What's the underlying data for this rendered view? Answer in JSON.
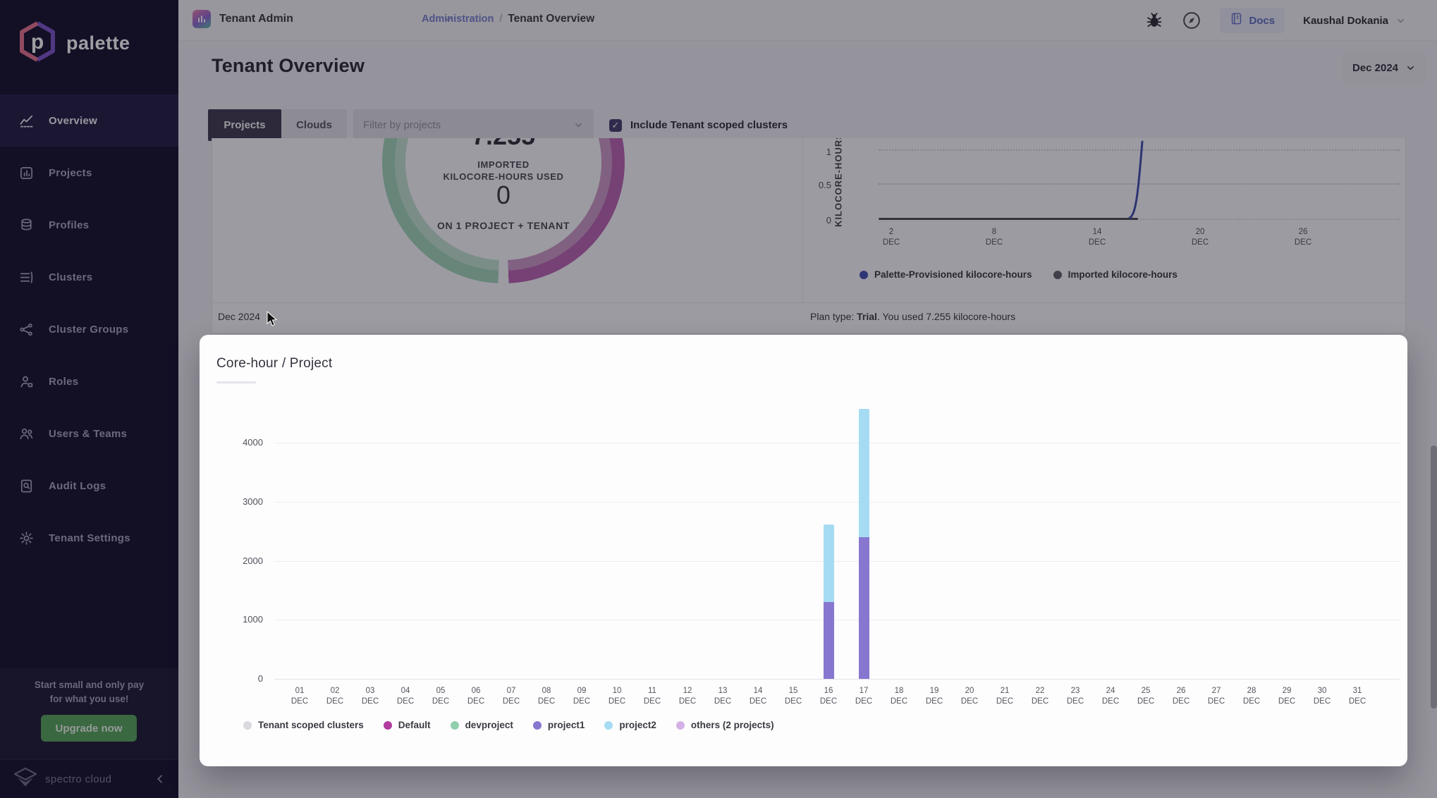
{
  "sidebar": {
    "brand": "palette",
    "items": [
      {
        "label": "Overview",
        "icon": "overview-icon",
        "active": true
      },
      {
        "label": "Projects",
        "icon": "projects-icon",
        "active": false
      },
      {
        "label": "Profiles",
        "icon": "profiles-icon",
        "active": false
      },
      {
        "label": "Clusters",
        "icon": "clusters-icon",
        "active": false
      },
      {
        "label": "Cluster Groups",
        "icon": "cluster-groups-icon",
        "active": false
      },
      {
        "label": "Roles",
        "icon": "roles-icon",
        "active": false
      },
      {
        "label": "Users & Teams",
        "icon": "users-teams-icon",
        "active": false
      },
      {
        "label": "Audit Logs",
        "icon": "audit-logs-icon",
        "active": false
      },
      {
        "label": "Tenant Settings",
        "icon": "tenant-settings-icon",
        "active": false
      }
    ],
    "upsell_line1": "Start small and only pay",
    "upsell_line2": "for what you use!",
    "upgrade_label": "Upgrade now",
    "footer_brand": "spectro cloud"
  },
  "topbar": {
    "project_selector": "Tenant Admin",
    "breadcrumb_section": "Administration",
    "breadcrumb_sep": "/",
    "breadcrumb_page": "Tenant Overview",
    "docs_label": "Docs",
    "user_name": "Kaushal Dokania"
  },
  "header": {
    "title": "Tenant Overview",
    "date_filter": "Dec 2024"
  },
  "filters": {
    "tab_projects": "Projects",
    "tab_clouds": "Clouds",
    "filter_placeholder": "Filter by projects",
    "checkbox_label": "Include Tenant scoped clusters",
    "checkbox_checked": "✓"
  },
  "usage_card": {
    "footer_month": "Dec 2024",
    "plan_prefix": "Plan type: ",
    "plan_type": "Trial",
    "plan_suffix": ". You used 7.255 kilocore-hours"
  },
  "chart_data": [
    {
      "id": "usage_donut",
      "type": "pie",
      "clipped_value": "7.255",
      "center_label_line1": "IMPORTED",
      "center_label_line2": "KILOCORE-HOURS USED",
      "center_value": "0",
      "center_sub": "ON 1 PROJECT + TENANT",
      "segments": [
        {
          "label": "Default",
          "share": 50,
          "color": "#bb64b3",
          "inner_color": "#cd9ac7"
        },
        {
          "label": "devproject",
          "share": 50,
          "color": "#a3d5ba",
          "inner_color": "#c4e3d1"
        }
      ],
      "gap_color": "#fbfbfd"
    },
    {
      "id": "kilocore_line",
      "type": "line",
      "ylabel": "KILOCORE-HOURS",
      "yticks": [
        "1",
        "0.5",
        "0"
      ],
      "ylim": [
        0,
        1
      ],
      "xticks": [
        [
          "2",
          "DEC"
        ],
        [
          "8",
          "DEC"
        ],
        [
          "14",
          "DEC"
        ],
        [
          "20",
          "DEC"
        ],
        [
          "26",
          "DEC"
        ]
      ],
      "x_days": [
        2,
        8,
        14,
        16,
        17
      ],
      "series": [
        {
          "name": "Palette-Provisioned kilocore-hours",
          "color": "#4553b2",
          "values": [
            0,
            0,
            0,
            0.05,
            1.2
          ]
        },
        {
          "name": "Imported kilocore-hours",
          "color": "#63636b",
          "values": [
            0,
            0,
            0,
            0,
            0
          ]
        }
      ]
    },
    {
      "id": "core_hour_project",
      "type": "bar",
      "stacked": true,
      "title": "Core-hour / Project",
      "yticks": [
        0,
        1000,
        2000,
        3000,
        4000
      ],
      "day_start": 1,
      "day_end": 31,
      "month_suffix": "DEC",
      "series": [
        {
          "name": "Tenant scoped clusters",
          "color": "#d9d9de"
        },
        {
          "name": "Default",
          "color": "#b13ba0"
        },
        {
          "name": "devproject",
          "color": "#90cfae"
        },
        {
          "name": "project1",
          "color": "#8877cf"
        },
        {
          "name": "project2",
          "color": "#a6dcf3"
        },
        {
          "name": "others (2 projects)",
          "color": "#d3b1e6"
        }
      ],
      "bars": {
        "16": {
          "project1": 1300,
          "project2": 1310
        },
        "17": {
          "project1": 2400,
          "project2": 2170
        }
      }
    }
  ]
}
